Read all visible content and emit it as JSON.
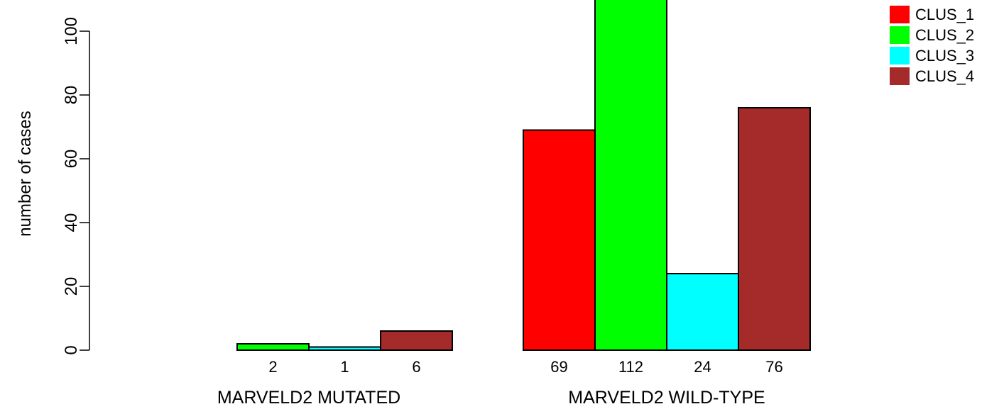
{
  "chart_data": {
    "type": "bar",
    "title": "",
    "xlabel": "",
    "ylabel": "number of cases",
    "ylim": [
      0,
      110
    ],
    "yticks": [
      0,
      20,
      40,
      60,
      80,
      100
    ],
    "grid": false,
    "legend_position": "top-right",
    "groups": [
      {
        "label": "MARVELD2 MUTATED",
        "values": [
          0,
          2,
          1,
          6
        ],
        "value_labels": [
          "",
          "2",
          "1",
          "6"
        ]
      },
      {
        "label": "MARVELD2 WILD-TYPE",
        "values": [
          69,
          112,
          24,
          76
        ],
        "value_labels": [
          "69",
          "112",
          "24",
          "76"
        ]
      }
    ],
    "series": [
      {
        "name": "CLUS_1",
        "color": "#ff0000"
      },
      {
        "name": "CLUS_2",
        "color": "#00ff00"
      },
      {
        "name": "CLUS_3",
        "color": "#00ffff"
      },
      {
        "name": "CLUS_4",
        "color": "#a52a2a"
      }
    ]
  }
}
